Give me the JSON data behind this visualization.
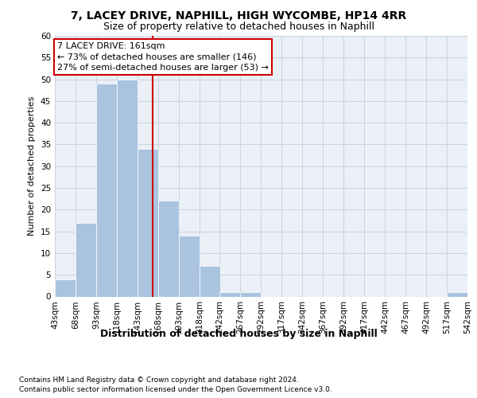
{
  "title1": "7, LACEY DRIVE, NAPHILL, HIGH WYCOMBE, HP14 4RR",
  "title2": "Size of property relative to detached houses in Naphill",
  "xlabel": "Distribution of detached houses by size in Naphill",
  "ylabel": "Number of detached properties",
  "bins": [
    "43sqm",
    "68sqm",
    "93sqm",
    "118sqm",
    "143sqm",
    "168sqm",
    "193sqm",
    "218sqm",
    "242sqm",
    "267sqm",
    "292sqm",
    "317sqm",
    "342sqm",
    "367sqm",
    "392sqm",
    "417sqm",
    "442sqm",
    "467sqm",
    "492sqm",
    "517sqm",
    "542sqm"
  ],
  "bin_edges": [
    43,
    68,
    93,
    118,
    143,
    168,
    193,
    218,
    242,
    267,
    292,
    317,
    342,
    367,
    392,
    417,
    442,
    467,
    492,
    517,
    542
  ],
  "values": [
    4,
    17,
    49,
    50,
    34,
    22,
    14,
    7,
    1,
    1,
    0,
    0,
    0,
    0,
    0,
    0,
    0,
    0,
    0,
    1,
    0
  ],
  "bar_color": "#aac4e0",
  "grid_color": "#c8d4e0",
  "background_color": "#eaf0f6",
  "red_line_x": 161,
  "annotation_line1": "7 LACEY DRIVE: 161sqm",
  "annotation_line2": "← 73% of detached houses are smaller (146)",
  "annotation_line3": "27% of semi-detached houses are larger (53) →",
  "annotation_box_edge_color": "#cc0000",
  "ylim": [
    0,
    60
  ],
  "yticks": [
    0,
    5,
    10,
    15,
    20,
    25,
    30,
    35,
    40,
    45,
    50,
    55,
    60
  ],
  "footnote1": "Contains HM Land Registry data © Crown copyright and database right 2024.",
  "footnote2": "Contains public sector information licensed under the Open Government Licence v3.0.",
  "title1_fontsize": 10,
  "title2_fontsize": 9,
  "xlabel_fontsize": 9,
  "ylabel_fontsize": 8,
  "tick_fontsize": 7.5,
  "annotation_fontsize": 8,
  "footnote_fontsize": 6.5
}
